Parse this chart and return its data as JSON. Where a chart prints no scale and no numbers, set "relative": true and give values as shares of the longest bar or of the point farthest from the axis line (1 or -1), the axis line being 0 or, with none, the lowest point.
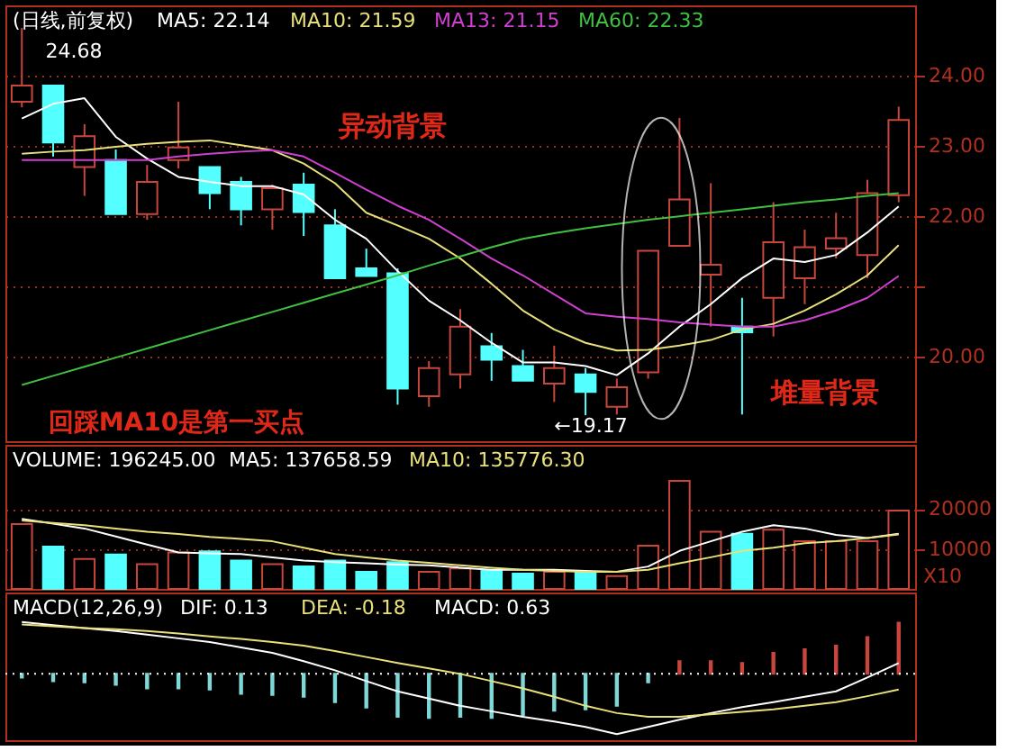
{
  "chart_data": [
    {
      "type": "candlestick",
      "subtitle": "(日线,前复权)",
      "annotations": [
        "异动背景",
        "堆量背景",
        "回踩MA10是第一买点",
        "24.68",
        "←19.17"
      ],
      "categories": [
        null,
        null,
        null,
        null,
        null,
        null,
        null,
        null,
        null,
        null,
        null,
        null,
        null,
        null,
        null,
        null,
        null,
        null,
        null,
        null,
        null,
        null,
        null,
        null,
        null,
        null,
        null,
        null,
        null
      ],
      "ohlc": [
        [
          23.63,
          24.68,
          23.55,
          23.86
        ],
        [
          23.86,
          23.86,
          22.85,
          23.05
        ],
        [
          22.7,
          23.31,
          22.29,
          23.14
        ],
        [
          22.8,
          22.95,
          22.03,
          22.03
        ],
        [
          22.03,
          22.73,
          21.95,
          22.49
        ],
        [
          22.8,
          23.63,
          22.68,
          22.98
        ],
        [
          22.7,
          22.7,
          22.1,
          22.33
        ],
        [
          22.49,
          22.56,
          21.87,
          22.1
        ],
        [
          22.1,
          22.45,
          21.81,
          22.4
        ],
        [
          22.45,
          22.62,
          21.72,
          22.06
        ],
        [
          21.87,
          22.1,
          21.12,
          21.12
        ],
        [
          21.26,
          21.54,
          21.15,
          21.15
        ],
        [
          21.19,
          21.26,
          19.32,
          19.55
        ],
        [
          19.44,
          19.94,
          19.29,
          19.84
        ],
        [
          19.75,
          20.68,
          19.55,
          20.43
        ],
        [
          20.15,
          20.34,
          19.66,
          19.96
        ],
        [
          19.87,
          20.1,
          19.66,
          19.66
        ],
        [
          19.62,
          20.16,
          19.36,
          19.84
        ],
        [
          19.75,
          19.84,
          19.17,
          19.5
        ],
        [
          19.29,
          19.69,
          19.18,
          19.57
        ],
        [
          19.78,
          21.51,
          19.69,
          21.51
        ],
        [
          21.58,
          23.4,
          21.58,
          22.24
        ],
        [
          21.17,
          22.47,
          20.43,
          21.31
        ],
        [
          20.43,
          20.84,
          19.18,
          20.35
        ],
        [
          20.84,
          22.2,
          20.29,
          21.63
        ],
        [
          21.12,
          21.81,
          20.75,
          21.56
        ],
        [
          21.54,
          22.05,
          21.4,
          21.69
        ],
        [
          21.45,
          22.52,
          21.12,
          22.33
        ],
        [
          22.3,
          23.56,
          22.2,
          23.37
        ]
      ],
      "colors": [
        "#c8463c",
        "#54ffff",
        "#c8463c",
        "#54ffff",
        "#c8463c",
        "#c8463c",
        "#54ffff",
        "#54ffff",
        "#c8463c",
        "#54ffff",
        "#54ffff",
        "#54ffff",
        "#54ffff",
        "#c8463c",
        "#c8463c",
        "#54ffff",
        "#54ffff",
        "#c8463c",
        "#54ffff",
        "#c8463c",
        "#c8463c",
        "#c8463c",
        "#c8463c",
        "#54ffff",
        "#c8463c",
        "#c8463c",
        "#c8463c",
        "#c8463c",
        "#c8463c"
      ],
      "series": [
        {
          "name": "MA5: 22.14",
          "type": "line",
          "color": "#ffffff",
          "values": [
            23.39,
            23.6,
            23.68,
            23.13,
            22.82,
            22.56,
            22.49,
            22.43,
            22.43,
            22.31,
            21.95,
            21.68,
            21.22,
            20.8,
            20.52,
            20.2,
            19.92,
            19.92,
            19.87,
            19.74,
            20.05,
            20.43,
            20.75,
            21.12,
            21.4,
            21.35,
            21.45,
            21.77,
            22.14
          ]
        },
        {
          "name": "MA10: 21.59",
          "type": "line",
          "color": "#e8e07a",
          "values": [
            22.89,
            22.92,
            22.94,
            22.99,
            23.03,
            23.06,
            23.08,
            23.01,
            22.94,
            22.75,
            22.47,
            22.05,
            21.87,
            21.68,
            21.4,
            21.04,
            20.66,
            20.39,
            20.2,
            20.09,
            20.1,
            20.16,
            20.24,
            20.39,
            20.47,
            20.66,
            20.89,
            21.16,
            21.59
          ]
        },
        {
          "name": "MA13: 21.15",
          "type": "line",
          "color": "#d040d0",
          "values": [
            22.8,
            22.8,
            22.8,
            22.8,
            22.8,
            22.85,
            22.89,
            22.92,
            22.94,
            22.85,
            22.62,
            22.38,
            22.15,
            21.95,
            21.68,
            21.4,
            21.16,
            20.89,
            20.62,
            20.57,
            20.54,
            20.49,
            20.46,
            20.43,
            20.43,
            20.52,
            20.66,
            20.84,
            21.15
          ]
        },
        {
          "name": "MA60: 22.33",
          "type": "line",
          "color": "#40c040",
          "values": [
            19.6,
            19.73,
            19.86,
            19.99,
            20.12,
            20.25,
            20.38,
            20.51,
            20.64,
            20.77,
            20.9,
            21.03,
            21.16,
            21.3,
            21.43,
            21.56,
            21.68,
            21.76,
            21.83,
            21.89,
            21.95,
            22.0,
            22.05,
            22.1,
            22.15,
            22.2,
            22.24,
            22.29,
            22.33
          ]
        }
      ],
      "ylim": [
        18.8,
        25.0
      ],
      "yticks": [
        {
          "value": 20,
          "label": "20.00"
        },
        {
          "value": 21,
          "label": null
        },
        {
          "value": 22,
          "label": "22.00"
        },
        {
          "value": 23,
          "label": "23.00"
        },
        {
          "value": 24,
          "label": "24.00"
        }
      ],
      "grid": "y"
    },
    {
      "type": "bar",
      "subtitle": "VOLUME: 196245.00",
      "ylabel": "X10",
      "annotations": [
        "MA5: 137658.59",
        "MA10: 135776.30"
      ],
      "categories": [
        null,
        null,
        null,
        null,
        null,
        null,
        null,
        null,
        null,
        null,
        null,
        null,
        null,
        null,
        null,
        null,
        null,
        null,
        null,
        null,
        null,
        null,
        null,
        null,
        null,
        null,
        null,
        null,
        null
      ],
      "values": [
        16200,
        10600,
        7500,
        8600,
        6200,
        9100,
        9400,
        7100,
        6200,
        5600,
        7100,
        4300,
        6700,
        4300,
        5100,
        4600,
        3800,
        4300,
        4300,
        3200,
        10800,
        27000,
        14300,
        13800,
        14800,
        11900,
        11900,
        11900,
        19600
      ],
      "colors": [
        "#c8463c",
        "#54ffff",
        "#c8463c",
        "#54ffff",
        "#c8463c",
        "#c8463c",
        "#54ffff",
        "#54ffff",
        "#c8463c",
        "#54ffff",
        "#54ffff",
        "#54ffff",
        "#54ffff",
        "#c8463c",
        "#c8463c",
        "#54ffff",
        "#54ffff",
        "#c8463c",
        "#54ffff",
        "#c8463c",
        "#c8463c",
        "#c8463c",
        "#c8463c",
        "#54ffff",
        "#c8463c",
        "#c8463c",
        "#c8463c",
        "#c8463c",
        "#c8463c"
      ],
      "series": [
        {
          "type": "line",
          "color": "#ffffff",
          "values": [
            17500,
            16300,
            15100,
            13100,
            11100,
            9100,
            8900,
            8700,
            7900,
            7100,
            6700,
            6400,
            6100,
            5900,
            5300,
            4800,
            4800,
            4800,
            4500,
            4300,
            5600,
            9500,
            11900,
            14300,
            15900,
            15100,
            13500,
            12700,
            13800
          ]
        },
        {
          "type": "line",
          "color": "#e8e07a",
          "values": [
            17100,
            16500,
            15900,
            15100,
            14300,
            13700,
            13000,
            12500,
            11900,
            10300,
            8700,
            7900,
            7100,
            6500,
            5900,
            5300,
            4800,
            4500,
            4300,
            4300,
            4800,
            6400,
            7900,
            9500,
            10300,
            11400,
            11900,
            12700,
            13600
          ]
        }
      ],
      "ylim": [
        0,
        36000
      ],
      "yticks": [
        10000,
        20000
      ],
      "grid": "y"
    },
    {
      "type": "bar",
      "relative": true,
      "subtitle": "MACD(12,26,9)",
      "annotations": [
        "DIF: 0.13",
        "DEA: -0.18",
        "MACD: 0.63"
      ],
      "categories": [
        null,
        null,
        null,
        null,
        null,
        null,
        null,
        null,
        null,
        null,
        null,
        null,
        null,
        null,
        null,
        null,
        null,
        null,
        null,
        null,
        null,
        null,
        null,
        null,
        null,
        null,
        null,
        null,
        null
      ],
      "ref_lines": [
        {
          "axis": "y",
          "value": 0,
          "color": "#ffffff",
          "line_style": "dotted"
        }
      ],
      "values": [
        -0.06,
        -0.12,
        -0.14,
        -0.18,
        -0.24,
        -0.24,
        -0.26,
        -0.33,
        -0.35,
        -0.38,
        -0.47,
        -0.56,
        -0.71,
        -0.73,
        -0.71,
        -0.73,
        -0.68,
        -0.61,
        -0.59,
        -0.53,
        -0.14,
        0.21,
        0.21,
        0.18,
        0.35,
        0.41,
        0.47,
        0.61,
        0.85
      ],
      "colors": [
        "#7fd8d8",
        "#7fd8d8",
        "#7fd8d8",
        "#7fd8d8",
        "#7fd8d8",
        "#7fd8d8",
        "#7fd8d8",
        "#7fd8d8",
        "#7fd8d8",
        "#7fd8d8",
        "#7fd8d8",
        "#7fd8d8",
        "#7fd8d8",
        "#7fd8d8",
        "#7fd8d8",
        "#7fd8d8",
        "#7fd8d8",
        "#7fd8d8",
        "#7fd8d8",
        "#7fd8d8",
        "#7fd8d8",
        "#c8463c",
        "#c8463c",
        "#c8463c",
        "#c8463c",
        "#c8463c",
        "#c8463c",
        "#c8463c",
        "#c8463c"
      ],
      "series": [
        {
          "type": "line",
          "color": "#ffffff",
          "values": [
            0.86,
            0.81,
            0.76,
            0.71,
            0.65,
            0.59,
            0.53,
            0.44,
            0.35,
            0.21,
            0.06,
            -0.12,
            -0.29,
            -0.41,
            -0.53,
            -0.62,
            -0.71,
            -0.79,
            -0.88,
            -1.0,
            -0.88,
            -0.76,
            -0.65,
            -0.55,
            -0.47,
            -0.38,
            -0.29,
            -0.06,
            0.18
          ]
        },
        {
          "type": "line",
          "color": "#e8e07a",
          "values": [
            0.82,
            0.79,
            0.76,
            0.74,
            0.71,
            0.67,
            0.62,
            0.58,
            0.53,
            0.47,
            0.38,
            0.28,
            0.18,
            0.09,
            0.0,
            -0.12,
            -0.24,
            -0.38,
            -0.53,
            -0.65,
            -0.71,
            -0.71,
            -0.67,
            -0.63,
            -0.59,
            -0.53,
            -0.47,
            -0.37,
            -0.26
          ]
        }
      ]
    }
  ]
}
